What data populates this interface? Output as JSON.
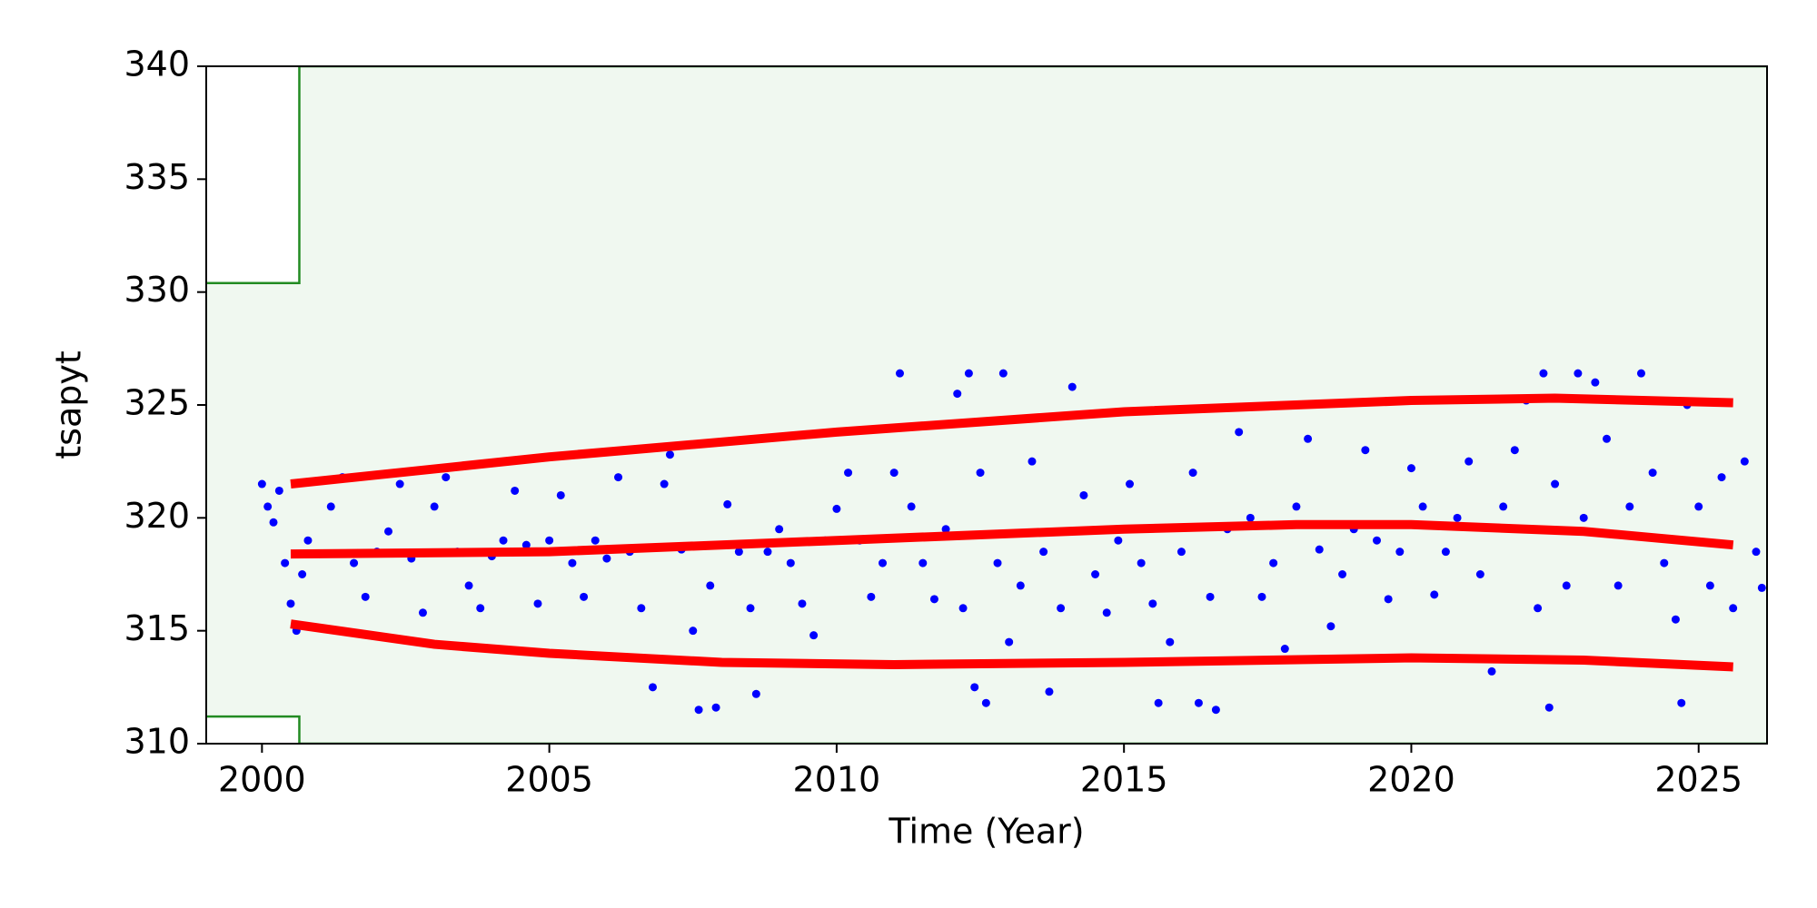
{
  "chart_data": {
    "type": "scatter",
    "xlabel": "Time (Year)",
    "ylabel": "tsapyt",
    "xlim": [
      1999.03,
      2026.19
    ],
    "ylim": [
      310,
      340
    ],
    "xticks": [
      2000,
      2005,
      2010,
      2015,
      2020,
      2025
    ],
    "yticks": [
      310,
      315,
      320,
      325,
      330,
      335,
      340
    ],
    "band": {
      "color": "#f0f8f0",
      "edge_color": "#228b22",
      "x": [
        1999.03,
        2000.65,
        2000.65,
        2026.19
      ],
      "lower": [
        311.2,
        311.2,
        310,
        310
      ],
      "upper": [
        330.4,
        330.4,
        340,
        340
      ]
    },
    "points": {
      "color": "#0000ff",
      "x": [
        2000.0,
        2000.1,
        2000.2,
        2000.3,
        2000.4,
        2000.5,
        2000.6,
        2000.7,
        2000.8,
        2001.0,
        2001.2,
        2001.4,
        2001.6,
        2001.8,
        2002.0,
        2002.2,
        2002.4,
        2002.6,
        2002.8,
        2003.0,
        2003.2,
        2003.4,
        2003.6,
        2003.8,
        2004.0,
        2004.2,
        2004.4,
        2004.6,
        2004.8,
        2005.0,
        2005.2,
        2005.4,
        2005.6,
        2005.8,
        2006.0,
        2006.2,
        2006.4,
        2006.6,
        2006.8,
        2007.0,
        2007.1,
        2007.3,
        2007.5,
        2007.6,
        2007.8,
        2007.9,
        2008.1,
        2008.3,
        2008.5,
        2008.6,
        2008.8,
        2009.0,
        2009.2,
        2009.4,
        2009.6,
        2009.8,
        2010.0,
        2010.2,
        2010.4,
        2010.6,
        2010.8,
        2011.0,
        2011.1,
        2011.3,
        2011.5,
        2011.7,
        2011.9,
        2012.1,
        2012.2,
        2012.3,
        2012.4,
        2012.5,
        2012.6,
        2012.8,
        2012.9,
        2013.0,
        2013.2,
        2013.4,
        2013.6,
        2013.7,
        2013.9,
        2014.1,
        2014.3,
        2014.5,
        2014.7,
        2014.9,
        2015.1,
        2015.3,
        2015.5,
        2015.6,
        2015.8,
        2016.0,
        2016.2,
        2016.3,
        2016.5,
        2016.6,
        2016.8,
        2017.0,
        2017.2,
        2017.4,
        2017.6,
        2017.8,
        2018.0,
        2018.2,
        2018.4,
        2018.6,
        2018.8,
        2019.0,
        2019.2,
        2019.4,
        2019.6,
        2019.8,
        2020.0,
        2020.2,
        2020.4,
        2020.6,
        2020.8,
        2021.0,
        2021.2,
        2021.4,
        2021.6,
        2021.8,
        2022.0,
        2022.2,
        2022.3,
        2022.4,
        2022.5,
        2022.7,
        2022.9,
        2023.0,
        2023.2,
        2023.4,
        2023.6,
        2023.8,
        2024.0,
        2024.2,
        2024.4,
        2024.6,
        2024.7,
        2024.8,
        2025.0,
        2025.2,
        2025.4,
        2025.6,
        2025.8,
        2026.0,
        2026.1
      ],
      "y": [
        321.5,
        320.5,
        319.8,
        321.2,
        318.0,
        316.2,
        315.0,
        317.5,
        319.0,
        318.4,
        320.5,
        321.8,
        318.0,
        316.5,
        318.5,
        319.4,
        321.5,
        318.2,
        315.8,
        320.5,
        321.8,
        318.5,
        317.0,
        316.0,
        318.3,
        319.0,
        321.2,
        318.8,
        316.2,
        319.0,
        321.0,
        318.0,
        316.5,
        319.0,
        318.2,
        321.8,
        318.5,
        316.0,
        312.5,
        321.5,
        322.8,
        318.6,
        315.0,
        311.5,
        317.0,
        311.6,
        320.6,
        318.5,
        316.0,
        312.2,
        318.5,
        319.5,
        318.0,
        316.2,
        314.8,
        319.0,
        320.4,
        322.0,
        319.0,
        316.5,
        318.0,
        322.0,
        326.4,
        320.5,
        318.0,
        316.4,
        319.5,
        325.5,
        316.0,
        326.4,
        312.5,
        322.0,
        311.8,
        318.0,
        326.4,
        314.5,
        317.0,
        322.5,
        318.5,
        312.3,
        316.0,
        325.8,
        321.0,
        317.5,
        315.8,
        319.0,
        321.5,
        318.0,
        316.2,
        311.8,
        314.5,
        318.5,
        322.0,
        311.8,
        316.5,
        311.5,
        319.5,
        323.8,
        320.0,
        316.5,
        318.0,
        314.2,
        320.5,
        323.5,
        318.6,
        315.2,
        317.5,
        319.5,
        323.0,
        319.0,
        316.4,
        318.5,
        322.2,
        320.5,
        316.6,
        318.5,
        320.0,
        322.5,
        317.5,
        313.2,
        320.5,
        323.0,
        325.2,
        316.0,
        326.4,
        311.6,
        321.5,
        317.0,
        326.4,
        320.0,
        326.0,
        323.5,
        317.0,
        320.5,
        326.4,
        322.0,
        318.0,
        315.5,
        311.8,
        325.0,
        320.5,
        317.0,
        321.8,
        316.0,
        322.5,
        318.5,
        316.9
      ]
    },
    "lines": [
      {
        "color": "#ff0000",
        "x": [
          2000.5,
          2005,
          2010,
          2015,
          2020,
          2022.5,
          2025.6
        ],
        "values": [
          321.5,
          322.7,
          323.8,
          324.7,
          325.2,
          325.3,
          325.1
        ]
      },
      {
        "color": "#ff0000",
        "x": [
          2000.5,
          2005,
          2010,
          2015,
          2018,
          2020,
          2023,
          2025.6
        ],
        "values": [
          318.4,
          318.5,
          319.0,
          319.5,
          319.7,
          319.7,
          319.4,
          318.8
        ]
      },
      {
        "color": "#ff0000",
        "x": [
          2000.5,
          2003,
          2005,
          2008,
          2011,
          2015,
          2020,
          2023,
          2025.6
        ],
        "values": [
          315.3,
          314.4,
          314.0,
          313.6,
          313.5,
          313.6,
          313.8,
          313.7,
          313.4
        ]
      }
    ]
  }
}
